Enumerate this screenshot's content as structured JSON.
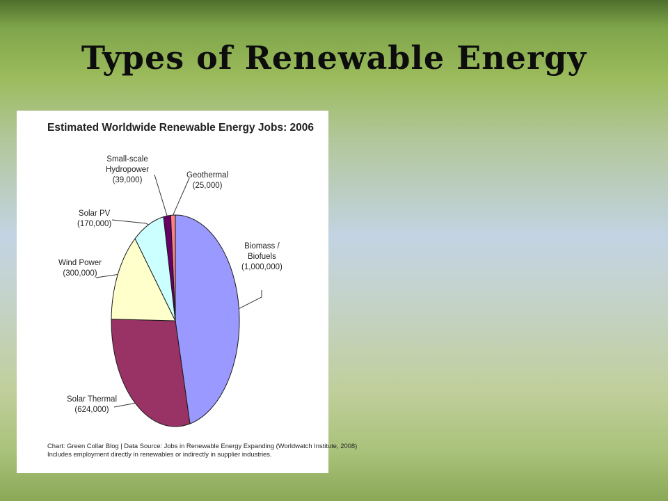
{
  "slide": {
    "title": "Types of Renewable Energy"
  },
  "chart_data": {
    "type": "pie",
    "title": "Estimated Worldwide Renewable Energy Jobs: 2006",
    "slices": [
      {
        "name": "Biomass / Biofuels",
        "label_lines": [
          "Biomass /",
          "Biofuels"
        ],
        "value_label": "(1,000,000)",
        "value": 1000000,
        "color": "#9999ff"
      },
      {
        "name": "Solar Thermal",
        "label_lines": [
          "Solar Thermal"
        ],
        "value_label": "(624,000)",
        "value": 624000,
        "color": "#993366"
      },
      {
        "name": "Wind Power",
        "label_lines": [
          "Wind Power"
        ],
        "value_label": "(300,000)",
        "value": 300000,
        "color": "#ffffcc"
      },
      {
        "name": "Solar PV",
        "label_lines": [
          "Solar PV"
        ],
        "value_label": "(170,000)",
        "value": 170000,
        "color": "#ccffff"
      },
      {
        "name": "Small-scale Hydropower",
        "label_lines": [
          "Small-scale",
          "Hydropower"
        ],
        "value_label": "(39,000)",
        "value": 39000,
        "color": "#660066"
      },
      {
        "name": "Geothermal",
        "label_lines": [
          "Geothermal"
        ],
        "value_label": "(25,000)",
        "value": 25000,
        "color": "#ff8080"
      }
    ],
    "footnote_lines": [
      "Chart: Green Collar Blog | Data Source: Jobs in Renewable Energy Expanding (Worldwatch Institute, 2008)",
      "Includes employment directly in renewables or indirectly in supplier industries."
    ]
  }
}
